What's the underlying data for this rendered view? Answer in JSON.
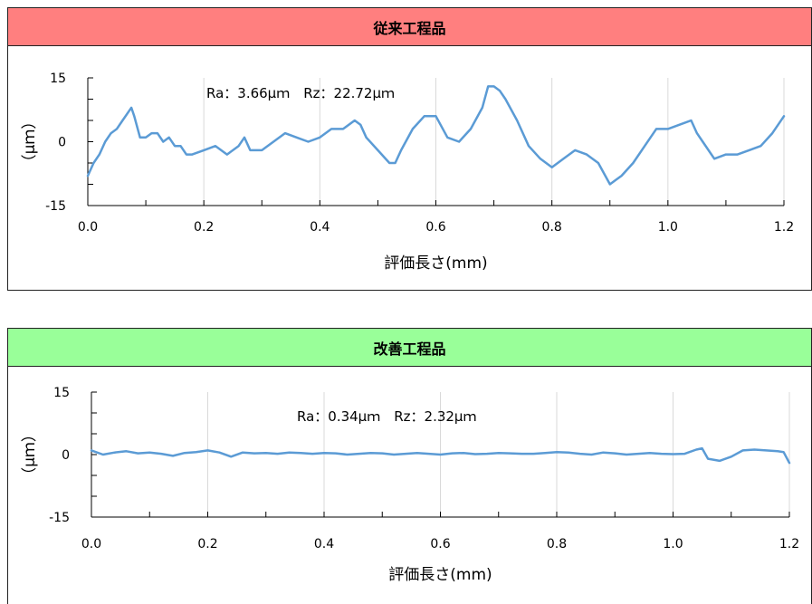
{
  "chart_data": [
    {
      "type": "line",
      "title": "従来工程品",
      "header_color": "#ff7f7f",
      "xlabel": "評価長さ(mm)",
      "ylabel": "（μｍ）",
      "xlim": [
        0,
        1.2
      ],
      "ylim": [
        -15,
        15
      ],
      "xticks": [
        "0.0",
        "0.2",
        "0.4",
        "0.6",
        "0.8",
        "1.0",
        "1.2"
      ],
      "yticks": [
        "15",
        "0",
        "-15"
      ],
      "annotation": "Ra：3.66μｍ　Rz：22.72μｍ",
      "grid": "vertical",
      "line_color": "#5b9bd5",
      "series": [
        {
          "x": [
            0.0,
            0.01,
            0.02,
            0.03,
            0.04,
            0.05,
            0.06,
            0.07,
            0.075,
            0.08,
            0.09,
            0.1,
            0.11,
            0.12,
            0.13,
            0.14,
            0.15,
            0.16,
            0.17,
            0.18,
            0.2,
            0.22,
            0.24,
            0.26,
            0.27,
            0.28,
            0.3,
            0.32,
            0.34,
            0.36,
            0.38,
            0.4,
            0.42,
            0.44,
            0.46,
            0.47,
            0.48,
            0.5,
            0.52,
            0.53,
            0.54,
            0.56,
            0.58,
            0.6,
            0.62,
            0.64,
            0.66,
            0.68,
            0.69,
            0.7,
            0.71,
            0.72,
            0.74,
            0.76,
            0.78,
            0.8,
            0.82,
            0.84,
            0.86,
            0.88,
            0.9,
            0.91,
            0.92,
            0.94,
            0.96,
            0.98,
            1.0,
            1.02,
            1.04,
            1.05,
            1.06,
            1.08,
            1.1,
            1.12,
            1.14,
            1.16,
            1.18,
            1.2
          ],
          "y": [
            -8,
            -5,
            -3,
            0,
            2,
            3,
            5,
            7,
            8,
            6,
            1,
            1,
            2,
            2,
            0,
            1,
            -1,
            -1,
            -3,
            -3,
            -2,
            -1,
            -3,
            -1,
            1,
            -2,
            -2,
            0,
            2,
            1,
            0,
            1,
            3,
            3,
            5,
            4,
            1,
            -2,
            -5,
            -5,
            -2,
            3,
            6,
            6,
            1,
            0,
            3,
            8,
            13,
            13,
            12,
            10,
            5,
            -1,
            -4,
            -6,
            -4,
            -2,
            -3,
            -5,
            -10,
            -9,
            -8,
            -5,
            -1,
            3,
            3,
            4,
            5,
            2,
            0,
            -4,
            -3,
            -3,
            -2,
            -1,
            2,
            6
          ]
        }
      ]
    },
    {
      "type": "line",
      "title": "改善工程品",
      "header_color": "#99ff99",
      "xlabel": "評価長さ(mm)",
      "ylabel": "（μｍ）",
      "xlim": [
        0,
        1.2
      ],
      "ylim": [
        -15,
        15
      ],
      "xticks": [
        "0.0",
        "0.2",
        "0.4",
        "0.6",
        "0.8",
        "1.0",
        "1.2"
      ],
      "yticks": [
        "15",
        "0",
        "-15"
      ],
      "annotation": "Ra：0.34μｍ　Rz：2.32μｍ",
      "grid": "vertical",
      "line_color": "#5b9bd5",
      "series": [
        {
          "x": [
            0.0,
            0.02,
            0.04,
            0.06,
            0.08,
            0.1,
            0.12,
            0.14,
            0.16,
            0.18,
            0.2,
            0.22,
            0.24,
            0.26,
            0.28,
            0.3,
            0.32,
            0.34,
            0.36,
            0.38,
            0.4,
            0.42,
            0.44,
            0.46,
            0.48,
            0.5,
            0.52,
            0.54,
            0.56,
            0.58,
            0.6,
            0.62,
            0.64,
            0.66,
            0.68,
            0.7,
            0.72,
            0.74,
            0.76,
            0.78,
            0.8,
            0.82,
            0.84,
            0.86,
            0.88,
            0.9,
            0.92,
            0.94,
            0.96,
            0.98,
            1.0,
            1.02,
            1.04,
            1.05,
            1.06,
            1.08,
            1.1,
            1.12,
            1.14,
            1.16,
            1.18,
            1.19,
            1.2
          ],
          "y": [
            1,
            0,
            0.5,
            0.8,
            0.3,
            0.5,
            0.2,
            -0.3,
            0.4,
            0.6,
            1,
            0.5,
            -0.5,
            0.5,
            0.3,
            0.4,
            0.2,
            0.5,
            0.4,
            0.2,
            0.4,
            0.3,
            0,
            0.2,
            0.4,
            0.3,
            0,
            0.2,
            0.4,
            0.2,
            0,
            0.3,
            0.4,
            0.1,
            0.2,
            0.4,
            0.3,
            0.2,
            0.2,
            0.4,
            0.6,
            0.5,
            0.2,
            0,
            0.5,
            0.3,
            0,
            0.2,
            0.4,
            0.2,
            0.1,
            0.2,
            1.2,
            1.5,
            -1,
            -1.5,
            -0.5,
            1,
            1.2,
            1,
            0.8,
            0.6,
            -2
          ]
        }
      ]
    }
  ]
}
